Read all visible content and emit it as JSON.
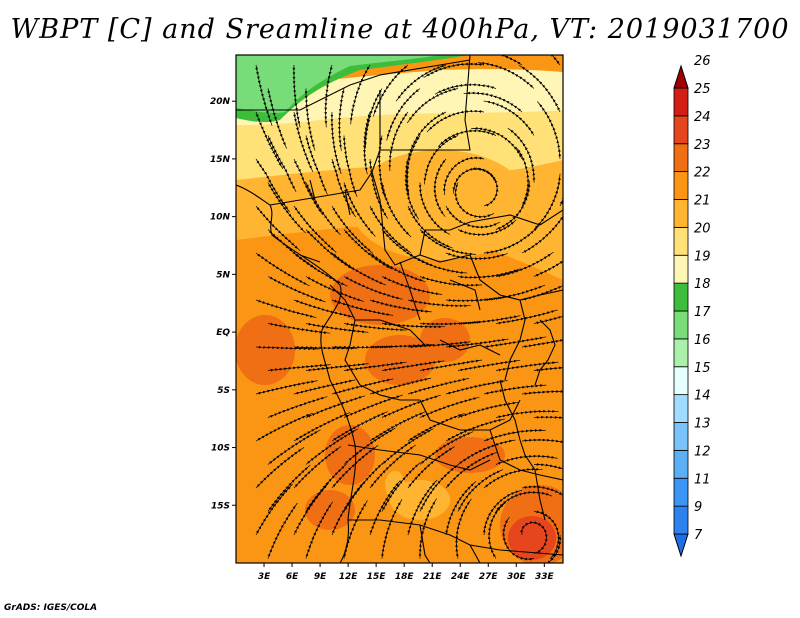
{
  "title": "WBPT [C] and Sreamline at 400hPa, VT: 2019031700",
  "credit": "GrADS: IGES/COLA",
  "map": {
    "lon_range": [
      0,
      35
    ],
    "lat_range": [
      -20,
      24
    ],
    "lon_ticks": [
      {
        "value": 3,
        "label": "3E"
      },
      {
        "value": 6,
        "label": "6E"
      },
      {
        "value": 9,
        "label": "9E"
      },
      {
        "value": 12,
        "label": "12E"
      },
      {
        "value": 15,
        "label": "15E"
      },
      {
        "value": 18,
        "label": "18E"
      },
      {
        "value": 21,
        "label": "21E"
      },
      {
        "value": 24,
        "label": "24E"
      },
      {
        "value": 27,
        "label": "27E"
      },
      {
        "value": 30,
        "label": "30E"
      },
      {
        "value": 33,
        "label": "33E"
      }
    ],
    "lat_ticks": [
      {
        "value": 20,
        "label": "20N"
      },
      {
        "value": 15,
        "label": "15N"
      },
      {
        "value": 10,
        "label": "10N"
      },
      {
        "value": 5,
        "label": "5N"
      },
      {
        "value": 0,
        "label": "EQ"
      },
      {
        "value": -5,
        "label": "5S"
      },
      {
        "value": -10,
        "label": "10S"
      },
      {
        "value": -15,
        "label": "15S"
      }
    ]
  },
  "colorbar": {
    "levels": [
      "7",
      "9",
      "11",
      "12",
      "13",
      "14",
      "15",
      "16",
      "17",
      "18",
      "19",
      "20",
      "21",
      "22",
      "23",
      "24",
      "25",
      "26"
    ],
    "colors": [
      "#1e6ee6",
      "#2d82f0",
      "#3c96f5",
      "#5aaff5",
      "#78c3fa",
      "#a0dcff",
      "#e6ffff",
      "#aaf0aa",
      "#78dc78",
      "#3cbe3c",
      "#fff5b4",
      "#ffe178",
      "#ffb432",
      "#fa9614",
      "#f06e14",
      "#e6461e",
      "#d21e14",
      "#a00000"
    ]
  },
  "features": {
    "cyclone_center": {
      "lon": 31.5,
      "lat": -17.5
    }
  }
}
